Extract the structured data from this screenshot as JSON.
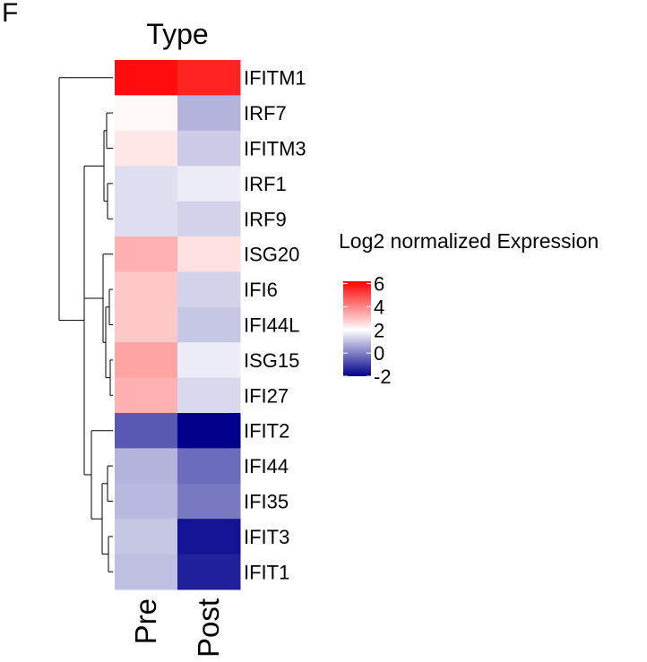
{
  "panel_label": "F",
  "chart_data": {
    "type": "heatmap",
    "title": "Type",
    "columns": [
      "Pre",
      "Post"
    ],
    "rows": [
      "IFITM1",
      "IRF7",
      "IFITM3",
      "IRF1",
      "IRF9",
      "ISG20",
      "IFI6",
      "IFI44L",
      "ISG15",
      "IFI27",
      "IFIT2",
      "IFI44",
      "IFI35",
      "IFIT3",
      "IFIT1"
    ],
    "values": [
      [
        6.0,
        5.6
      ],
      [
        2.1,
        0.8
      ],
      [
        2.4,
        1.2
      ],
      [
        1.5,
        1.7
      ],
      [
        1.5,
        1.3
      ],
      [
        3.3,
        2.5
      ],
      [
        2.9,
        1.3
      ],
      [
        2.9,
        1.1
      ],
      [
        3.5,
        1.7
      ],
      [
        3.3,
        1.4
      ],
      [
        -0.6,
        -2.0
      ],
      [
        0.8,
        -0.3
      ],
      [
        0.9,
        -0.1
      ],
      [
        1.1,
        -1.7
      ],
      [
        1.0,
        -1.5
      ]
    ],
    "legend": {
      "title": "Log2 normalized Expression",
      "ticks": [
        "6",
        "4",
        "2",
        "0",
        "-2"
      ],
      "min": -2,
      "mid": 2,
      "max": 6.2,
      "colors": {
        "low": "#00008b",
        "mid": "#ffffff",
        "high": "#ff0000"
      }
    },
    "row_dendrogram": true
  }
}
